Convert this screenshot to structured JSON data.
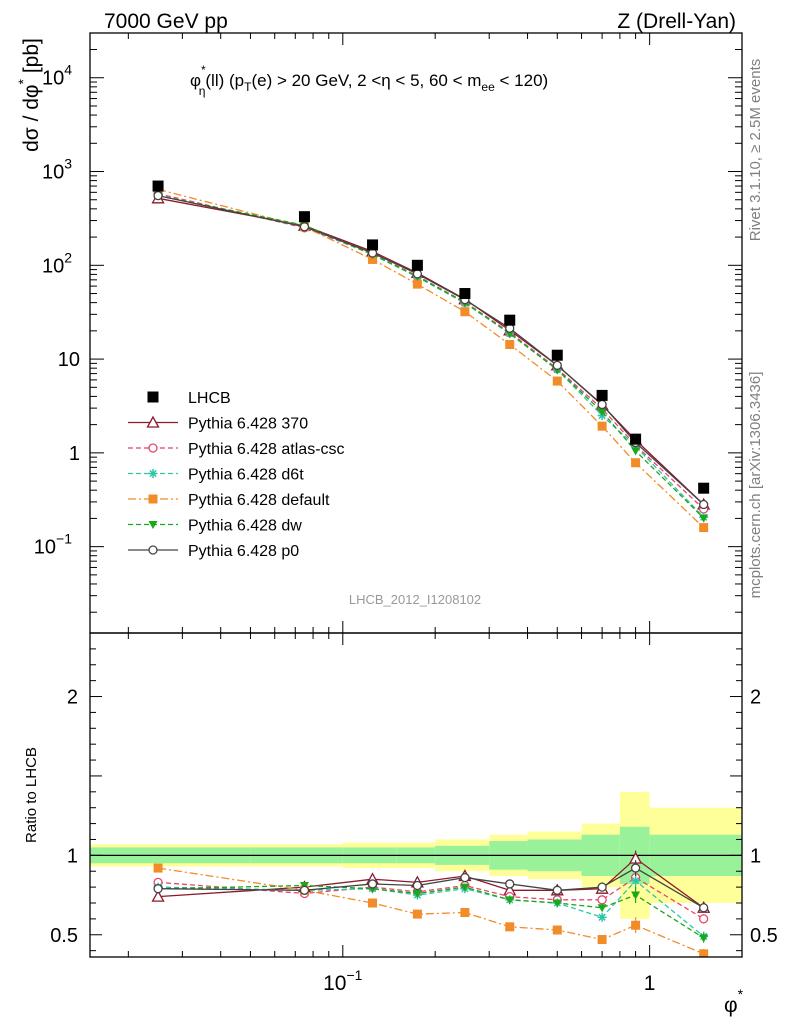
{
  "header": {
    "left": "7000 GeV pp",
    "right": "Z (Drell-Yan)"
  },
  "side": {
    "rivet": "Rivet 3.1.10, ≥ 2.5M events",
    "mcplots": "mcplots.cern.ch [arXiv:1306.3436]"
  },
  "chart_data": {
    "type": "line",
    "title": "φ*η(ll) (pT(e) > 20 GeV, 2 <η < 5, 60 < mee < 120)",
    "title_parts": {
      "phi": "φ",
      "phi_sup": "*",
      "phi_sub": "η",
      "ll": "(ll) (p",
      "pt_sub": "T",
      "rest": "(e) > 20 GeV, 2 <η < 5, 60 < m",
      "m_sub": "ee",
      "end": " < 120)"
    },
    "watermark": "LHCB_2012_I1208102",
    "ylabel_main": "dσ / dφ* [pb]",
    "ylabel_main_parts": {
      "main": "dσ / dφ",
      "sup": "*",
      "unit": " [pb]"
    },
    "ylabel_ratio": "Ratio to LHCB",
    "xlabel": "φ*",
    "xlabel_parts": {
      "main": "φ",
      "sup": "*"
    },
    "xscale": "log",
    "xlim": [
      0.015,
      2.0
    ],
    "main_yscale": "log",
    "main_ylim": [
      0.012,
      30000
    ],
    "ratio_ylim": [
      0.36,
      2.4
    ],
    "main_yticks": [
      {
        "v": 0.1,
        "base": "10",
        "exp": "−1"
      },
      {
        "v": 1,
        "text": "1"
      },
      {
        "v": 10,
        "text": "10"
      },
      {
        "v": 100,
        "base": "10",
        "exp": "2"
      },
      {
        "v": 1000,
        "base": "10",
        "exp": "3"
      },
      {
        "v": 10000,
        "base": "10",
        "exp": "4"
      }
    ],
    "ratio_yticks": [
      {
        "v": 0.5,
        "text": "0.5"
      },
      {
        "v": 1,
        "text": "1"
      },
      {
        "v": 2,
        "text": "2"
      }
    ],
    "xticks": [
      {
        "v": 0.1,
        "base": "10",
        "exp": "−1"
      },
      {
        "v": 1,
        "text": "1"
      }
    ],
    "bin_edges": [
      0.015,
      0.05,
      0.1,
      0.15,
      0.2,
      0.3,
      0.4,
      0.6,
      0.8,
      1.0,
      2.0
    ],
    "x": [
      0.025,
      0.075,
      0.125,
      0.175,
      0.25,
      0.35,
      0.5,
      0.7,
      0.9,
      1.5
    ],
    "data": {
      "name": "LHCB",
      "color": "#000000",
      "values": [
        700,
        330,
        165,
        100,
        50,
        26,
        11,
        4.1,
        1.4,
        0.42
      ],
      "band_inner": [
        0.05,
        0.05,
        0.05,
        0.05,
        0.06,
        0.09,
        0.1,
        0.13,
        0.18,
        0.13
      ],
      "band_outer": [
        0.07,
        0.07,
        0.08,
        0.08,
        0.1,
        0.13,
        0.15,
        0.2,
        0.4,
        0.3
      ]
    },
    "series": [
      {
        "name": "Pythia 6.428 370",
        "color": "#8b1a2b",
        "dash": "",
        "marker": "triangle-open",
        "ratio": [
          0.74,
          0.8,
          0.85,
          0.83,
          0.87,
          0.78,
          0.78,
          0.79,
          0.98,
          0.67
        ],
        "ratio_err": [
          0.01,
          0.01,
          0.01,
          0.01,
          0.01,
          0.015,
          0.015,
          0.02,
          0.05,
          0.03
        ]
      },
      {
        "name": "Pythia 6.428 atlas-csc",
        "color": "#e8456e",
        "dash": "5,3",
        "marker": "circle-open",
        "ratio": [
          0.83,
          0.76,
          0.8,
          0.77,
          0.81,
          0.74,
          0.72,
          0.72,
          0.86,
          0.6
        ],
        "ratio_err": [
          0.01,
          0.01,
          0.01,
          0.01,
          0.01,
          0.015,
          0.015,
          0.02,
          0.05,
          0.03
        ]
      },
      {
        "name": "Pythia 6.428 d6t",
        "color": "#2ec4a8",
        "dash": "5,3",
        "marker": "star",
        "ratio": [
          0.8,
          0.78,
          0.79,
          0.75,
          0.79,
          0.72,
          0.7,
          0.61,
          0.84,
          0.49
        ],
        "ratio_err": [
          0.01,
          0.01,
          0.01,
          0.01,
          0.01,
          0.015,
          0.015,
          0.02,
          0.05,
          0.03
        ]
      },
      {
        "name": "Pythia 6.428 default",
        "color": "#f28c28",
        "dash": "8,3,2,3",
        "marker": "square",
        "ratio": [
          0.92,
          0.78,
          0.7,
          0.63,
          0.64,
          0.55,
          0.53,
          0.47,
          0.56,
          0.38
        ],
        "ratio_err": [
          0.01,
          0.01,
          0.01,
          0.01,
          0.01,
          0.015,
          0.015,
          0.025,
          0.05,
          0.03
        ]
      },
      {
        "name": "Pythia 6.428 dw",
        "color": "#18a818",
        "dash": "5,3",
        "marker": "triangle-down",
        "ratio": [
          0.79,
          0.81,
          0.79,
          0.76,
          0.8,
          0.72,
          0.7,
          0.67,
          0.75,
          0.48
        ],
        "ratio_err": [
          0.01,
          0.01,
          0.01,
          0.01,
          0.01,
          0.015,
          0.015,
          0.02,
          0.05,
          0.03
        ]
      },
      {
        "name": "Pythia 6.428 p0",
        "color": "#444444",
        "dash": "",
        "marker": "circle-open",
        "ratio": [
          0.79,
          0.78,
          0.82,
          0.81,
          0.86,
          0.82,
          0.78,
          0.8,
          0.92,
          0.67
        ],
        "ratio_err": [
          0.01,
          0.01,
          0.01,
          0.01,
          0.01,
          0.015,
          0.015,
          0.02,
          0.05,
          0.03
        ]
      }
    ],
    "legend_position": "middle-left"
  }
}
